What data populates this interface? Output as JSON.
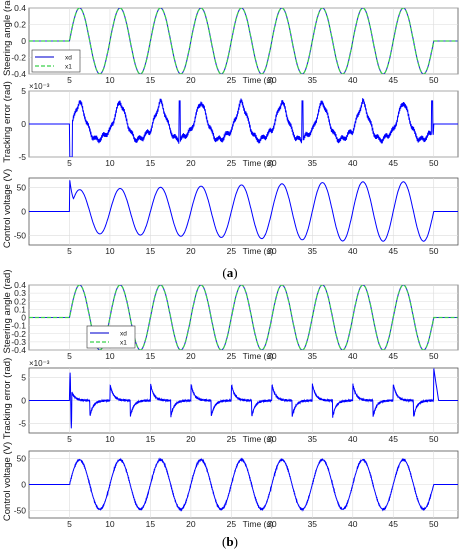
{
  "colors": {
    "reference": "#2a2ad8",
    "response": "#39d14a",
    "trace": "#0000ff",
    "grid": "#dcdcdc",
    "axes": "#555555"
  },
  "figure": {
    "caption_a": {
      "open": "(",
      "letter": "a",
      "close": ")"
    },
    "caption_b": {
      "open": "(",
      "letter": "b",
      "close": ")"
    }
  },
  "chart_data": [
    {
      "id": "a1",
      "type": "line",
      "ylabel": "Steering angle (rad)",
      "xlabel": "Time (s)",
      "xlim": [
        0,
        53
      ],
      "ylim": [
        -0.4,
        0.4
      ],
      "grid": true,
      "xticks": [
        "5",
        "10",
        "15",
        "20",
        "25",
        "30",
        "35",
        "40",
        "45",
        "50"
      ],
      "yticks": [
        "0.4",
        "0.2",
        "0",
        "-0.2",
        "-0.4"
      ],
      "legend": [
        "xd",
        "x1"
      ],
      "legend_position": "bottom-left",
      "series": [
        {
          "name": "xd",
          "kind": "sine",
          "amplitude": 0.4,
          "start": 5,
          "end": 50,
          "period": 5,
          "style": "solid"
        },
        {
          "name": "x1",
          "kind": "sine",
          "amplitude": 0.4,
          "start": 5,
          "end": 50,
          "period": 5,
          "style": "dashed"
        }
      ]
    },
    {
      "id": "a2",
      "type": "line",
      "ylabel": "Tracking error (rad)",
      "xlabel": "Time (s)",
      "xlim": [
        0,
        53
      ],
      "ylim": [
        -5,
        5
      ],
      "exponent": "×10⁻³",
      "grid": true,
      "xticks": [
        "5",
        "10",
        "15",
        "20",
        "25",
        "30",
        "35",
        "40",
        "45",
        "50"
      ],
      "yticks": [
        "5",
        "0",
        "-5"
      ],
      "series": [
        {
          "kind": "error",
          "amplitude": 2.2,
          "start": 5,
          "end": 50,
          "period": 5,
          "spikes": [
            18.6,
            33.8,
            49.8
          ]
        }
      ]
    },
    {
      "id": "a3",
      "type": "line",
      "ylabel": "Control voltage (V)",
      "xlabel": "Time (s)",
      "xlim": [
        0,
        53
      ],
      "ylim": [
        -70,
        70
      ],
      "grid": true,
      "xticks": [
        "5",
        "10",
        "15",
        "20",
        "25",
        "30",
        "35",
        "40",
        "45",
        "50"
      ],
      "yticks": [
        "50",
        "0",
        "-50"
      ],
      "series": [
        {
          "kind": "sine",
          "amplitude_start": 45,
          "amplitude_end": 62,
          "start": 5,
          "end": 50,
          "period": 5,
          "startup_peak": 70
        }
      ]
    },
    {
      "id": "b1",
      "type": "line",
      "ylabel": "Steering angle (rad)",
      "xlabel": "Time (s)",
      "xlim": [
        0,
        53
      ],
      "ylim": [
        -0.4,
        0.4
      ],
      "grid": true,
      "xticks": [
        "5",
        "10",
        "15",
        "20",
        "25",
        "30",
        "35",
        "40",
        "45",
        "50"
      ],
      "yticks": [
        "0.4",
        "0.3",
        "0.2",
        "0.1",
        "0",
        "-0.1",
        "-0.2",
        "-0.3",
        "-0.4"
      ],
      "legend": [
        "xd",
        "x1"
      ],
      "legend_position": "bottom-right",
      "series": [
        {
          "name": "xd",
          "kind": "sine",
          "amplitude": 0.4,
          "start": 5,
          "end": 50,
          "period": 5,
          "style": "solid"
        },
        {
          "name": "x1",
          "kind": "sine",
          "amplitude": 0.4,
          "start": 5,
          "end": 50,
          "period": 5,
          "style": "dashed"
        }
      ]
    },
    {
      "id": "b2",
      "type": "line",
      "ylabel": "Tracking error (rad)",
      "xlabel": "Time (s)",
      "xlim": [
        0,
        53
      ],
      "ylim": [
        -7,
        7
      ],
      "exponent": "×10⁻³",
      "grid": true,
      "xticks": [
        "5",
        "10",
        "15",
        "20",
        "25",
        "30",
        "35",
        "40",
        "45",
        "50"
      ],
      "yticks": [
        "5",
        "0",
        "-5"
      ],
      "series": [
        {
          "kind": "cusp",
          "amplitude": 4,
          "start": 5,
          "end": 50,
          "period": 2.5
        }
      ]
    },
    {
      "id": "b3",
      "type": "line",
      "ylabel": "Control voltage (V)",
      "xlabel": "Time (s)",
      "xlim": [
        0,
        53
      ],
      "ylim": [
        -65,
        65
      ],
      "grid": true,
      "xticks": [
        "5",
        "10",
        "15",
        "20",
        "25",
        "30",
        "35",
        "40",
        "45",
        "50"
      ],
      "yticks": [
        "50",
        "0",
        "-50"
      ],
      "series": [
        {
          "kind": "sine",
          "amplitude_start": 48,
          "amplitude_end": 48,
          "start": 5,
          "end": 50,
          "period": 5,
          "noisy": true
        }
      ]
    }
  ]
}
